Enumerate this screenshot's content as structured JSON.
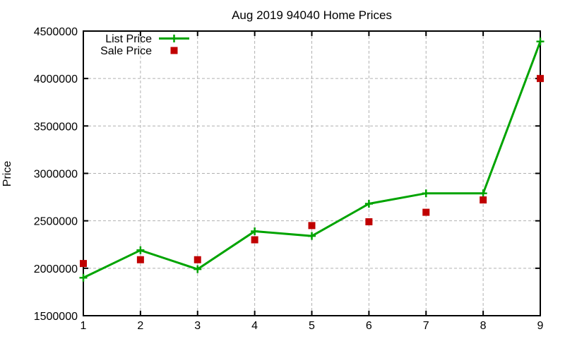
{
  "chart_data": {
    "type": "line",
    "title": "Aug 2019 94040 Home Prices",
    "xlabel": "",
    "ylabel": "Price",
    "xlim": [
      1,
      9
    ],
    "ylim": [
      1500000,
      4500000
    ],
    "xticks": [
      1,
      2,
      3,
      4,
      5,
      6,
      7,
      8,
      9
    ],
    "yticks": [
      1500000,
      2000000,
      2500000,
      3000000,
      3500000,
      4000000,
      4500000
    ],
    "grid": "dashed",
    "legend": {
      "position": "inside-top-left"
    },
    "x": [
      1,
      2,
      3,
      4,
      5,
      6,
      7,
      8,
      9
    ],
    "series": [
      {
        "name": "List Price",
        "marker": "plus",
        "line": true,
        "color": "#00a400",
        "values": [
          1900000,
          2190000,
          1990000,
          2390000,
          2340000,
          2680000,
          2790000,
          2790000,
          4390000
        ]
      },
      {
        "name": "Sale Price",
        "marker": "square",
        "line": false,
        "color": "#c00000",
        "values": [
          2050000,
          2090000,
          2090000,
          2300000,
          2450000,
          2490000,
          2590000,
          2720000,
          4000000
        ]
      }
    ],
    "colors": {
      "grid": "#b0b0b0",
      "axis": "#000000",
      "text": "#000000",
      "background": "#ffffff"
    }
  }
}
